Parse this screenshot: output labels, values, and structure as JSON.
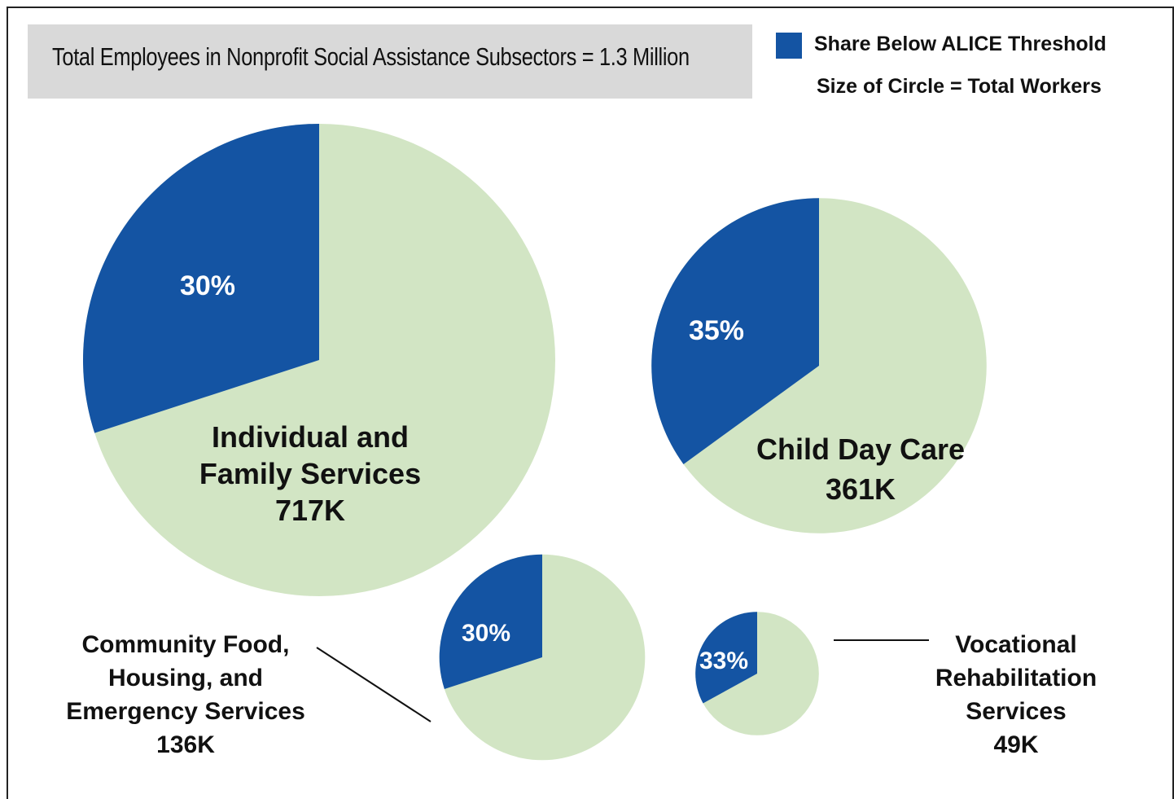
{
  "title": "Total Employees in Nonprofit Social Assistance Subsectors = 1.3 Million",
  "legend": {
    "series_label": "Share Below ALICE Threshold",
    "size_note": "Size of Circle = Total Workers"
  },
  "colors": {
    "below_threshold": "#1454a3",
    "remainder": "#d2e5c4",
    "title_background": "#d9d9d9"
  },
  "chart_data": {
    "type": "pie",
    "title": "Total Employees in Nonprofit Social Assistance Subsectors = 1.3 Million",
    "series_name": "Share Below ALICE Threshold",
    "size_encoding": "Size of Circle = Total Workers",
    "pies": [
      {
        "name_lines": [
          "Individual and",
          "Family Services"
        ],
        "total_label": "717K",
        "total_workers": 717000,
        "share_below": 30,
        "share_label": "30%"
      },
      {
        "name_lines": [
          "Child Day Care"
        ],
        "total_label": "361K",
        "total_workers": 361000,
        "share_below": 35,
        "share_label": "35%"
      },
      {
        "name_lines": [
          "Community Food,",
          "Housing, and",
          "Emergency Services"
        ],
        "total_label": "136K",
        "total_workers": 136000,
        "share_below": 30,
        "share_label": "30%"
      },
      {
        "name_lines": [
          "Vocational",
          "Rehabilitation",
          "Services"
        ],
        "total_label": "49K",
        "total_workers": 49000,
        "share_below": 33,
        "share_label": "33%"
      }
    ]
  }
}
